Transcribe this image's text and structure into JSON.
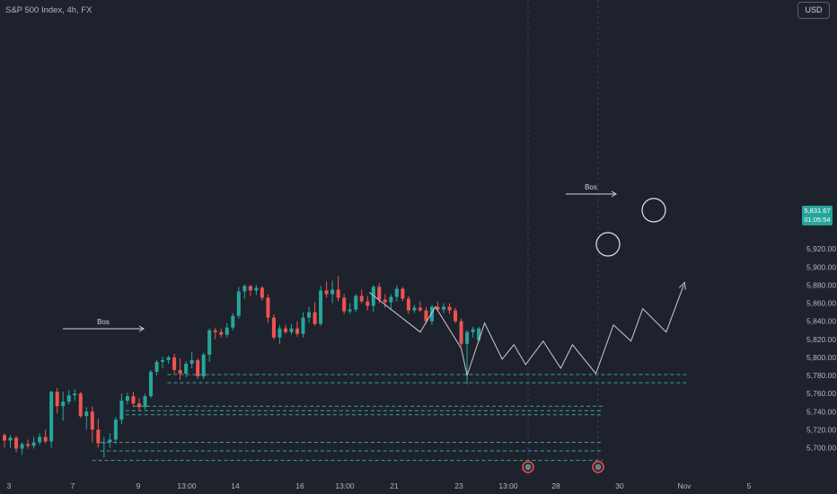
{
  "header": {
    "title": "S&P 500 Index, 4h, FX",
    "currency": "USD"
  },
  "last_price": {
    "value": "5,831.67",
    "countdown": "01:05:54"
  },
  "colors": {
    "background": "#1e222d",
    "up": "#26a69a",
    "down": "#ef5350",
    "text": "#b2b5be",
    "level": "#3aa39a",
    "projection": "#d1d4dc"
  },
  "chart_data": {
    "type": "candlestick",
    "title": "S&P 500 Index, 4h, FX",
    "ylim": [
      5683,
      5927
    ],
    "y_ticks": [
      "5,700.00",
      "5,720.00",
      "5,740.00",
      "5,760.00",
      "5,780.00",
      "5,800.00",
      "5,820.00",
      "5,840.00",
      "5,860.00",
      "5,880.00",
      "5,900.00",
      "5,920.00"
    ],
    "x_ticks": [
      "3",
      "7",
      "9",
      "13:00",
      "14",
      "16",
      "13:00",
      "21",
      "23",
      "13:00",
      "28",
      "30",
      "Nov",
      "5"
    ],
    "candles": [
      [
        5714,
        5716,
        5700,
        5708
      ],
      [
        5708,
        5714,
        5700,
        5711
      ],
      [
        5711,
        5713,
        5695,
        5699
      ],
      [
        5699,
        5706,
        5692,
        5704
      ],
      [
        5704,
        5709,
        5699,
        5702
      ],
      [
        5702,
        5712,
        5699,
        5706
      ],
      [
        5706,
        5716,
        5703,
        5712
      ],
      [
        5712,
        5720,
        5705,
        5707
      ],
      [
        5707,
        5763,
        5700,
        5762
      ],
      [
        5762,
        5766,
        5738,
        5746
      ],
      [
        5746,
        5762,
        5730,
        5751
      ],
      [
        5751,
        5764,
        5748,
        5758
      ],
      [
        5758,
        5765,
        5752,
        5760
      ],
      [
        5760,
        5762,
        5733,
        5735
      ],
      [
        5735,
        5745,
        5720,
        5740
      ],
      [
        5740,
        5746,
        5706,
        5720
      ],
      [
        5720,
        5732,
        5700,
        5705
      ],
      [
        5705,
        5712,
        5689,
        5706
      ],
      [
        5706,
        5716,
        5700,
        5709
      ],
      [
        5709,
        5734,
        5704,
        5731
      ],
      [
        5731,
        5760,
        5726,
        5752
      ],
      [
        5752,
        5761,
        5748,
        5757
      ],
      [
        5757,
        5762,
        5745,
        5749
      ],
      [
        5749,
        5755,
        5741,
        5745
      ],
      [
        5745,
        5760,
        5742,
        5757
      ],
      [
        5757,
        5786,
        5755,
        5784
      ],
      [
        5784,
        5797,
        5780,
        5795
      ],
      [
        5795,
        5801,
        5788,
        5797
      ],
      [
        5797,
        5802,
        5793,
        5800
      ],
      [
        5800,
        5804,
        5782,
        5786
      ],
      [
        5786,
        5799,
        5775,
        5782
      ],
      [
        5782,
        5796,
        5778,
        5793
      ],
      [
        5793,
        5806,
        5788,
        5797
      ],
      [
        5797,
        5799,
        5776,
        5779
      ],
      [
        5779,
        5805,
        5776,
        5803
      ],
      [
        5803,
        5832,
        5795,
        5830
      ],
      [
        5830,
        5833,
        5820,
        5828
      ],
      [
        5828,
        5832,
        5822,
        5825
      ],
      [
        5825,
        5838,
        5822,
        5833
      ],
      [
        5833,
        5849,
        5830,
        5846
      ],
      [
        5846,
        5878,
        5843,
        5873
      ],
      [
        5873,
        5881,
        5865,
        5879
      ],
      [
        5879,
        5880,
        5868,
        5874
      ],
      [
        5874,
        5880,
        5869,
        5877
      ],
      [
        5877,
        5879,
        5863,
        5866
      ],
      [
        5866,
        5870,
        5838,
        5844
      ],
      [
        5844,
        5848,
        5820,
        5822
      ],
      [
        5822,
        5836,
        5815,
        5832
      ],
      [
        5832,
        5836,
        5826,
        5828
      ],
      [
        5828,
        5837,
        5825,
        5832
      ],
      [
        5832,
        5840,
        5823,
        5826
      ],
      [
        5826,
        5850,
        5822,
        5844
      ],
      [
        5844,
        5856,
        5838,
        5850
      ],
      [
        5850,
        5861,
        5835,
        5837
      ],
      [
        5837,
        5879,
        5835,
        5874
      ],
      [
        5874,
        5884,
        5866,
        5870
      ],
      [
        5870,
        5885,
        5860,
        5875
      ],
      [
        5875,
        5890,
        5862,
        5866
      ],
      [
        5866,
        5870,
        5848,
        5851
      ],
      [
        5851,
        5860,
        5848,
        5853
      ],
      [
        5853,
        5870,
        5850,
        5868
      ],
      [
        5868,
        5875,
        5860,
        5862
      ],
      [
        5862,
        5868,
        5852,
        5857
      ],
      [
        5857,
        5880,
        5850,
        5878
      ],
      [
        5878,
        5882,
        5860,
        5864
      ],
      [
        5864,
        5870,
        5855,
        5861
      ],
      [
        5861,
        5870,
        5852,
        5867
      ],
      [
        5867,
        5880,
        5862,
        5876
      ],
      [
        5876,
        5878,
        5862,
        5865
      ],
      [
        5865,
        5868,
        5848,
        5852
      ],
      [
        5852,
        5858,
        5849,
        5855
      ],
      [
        5855,
        5862,
        5850,
        5852
      ],
      [
        5852,
        5856,
        5837,
        5840
      ],
      [
        5840,
        5858,
        5836,
        5856
      ],
      [
        5856,
        5862,
        5851,
        5853
      ],
      [
        5853,
        5860,
        5849,
        5856
      ],
      [
        5856,
        5860,
        5848,
        5852
      ],
      [
        5852,
        5855,
        5838,
        5840
      ],
      [
        5840,
        5843,
        5812,
        5815
      ],
      [
        5815,
        5830,
        5770,
        5828
      ],
      [
        5828,
        5834,
        5822,
        5831
      ],
      [
        5819,
        5834,
        5817,
        5832
      ]
    ],
    "annotations": {
      "bos_labels": [
        "Bos",
        "Bos"
      ],
      "levels": [
        {
          "y": 5781.0,
          "x": [
            0.2,
            0.82
          ]
        },
        {
          "y": 5772.0,
          "x": [
            0.2,
            0.82
          ]
        },
        {
          "y": 5746.0,
          "x": [
            0.16,
            0.72
          ]
        },
        {
          "y": 5741.0,
          "x": [
            0.15,
            0.72
          ]
        },
        {
          "y": 5736.5,
          "x": [
            0.15,
            0.72
          ]
        },
        {
          "y": 5706.0,
          "x": [
            0.12,
            0.72
          ]
        },
        {
          "y": 5696.5,
          "x": [
            0.12,
            0.72
          ]
        },
        {
          "y": 5686.0,
          "x": [
            0.11,
            0.72
          ]
        }
      ]
    }
  }
}
